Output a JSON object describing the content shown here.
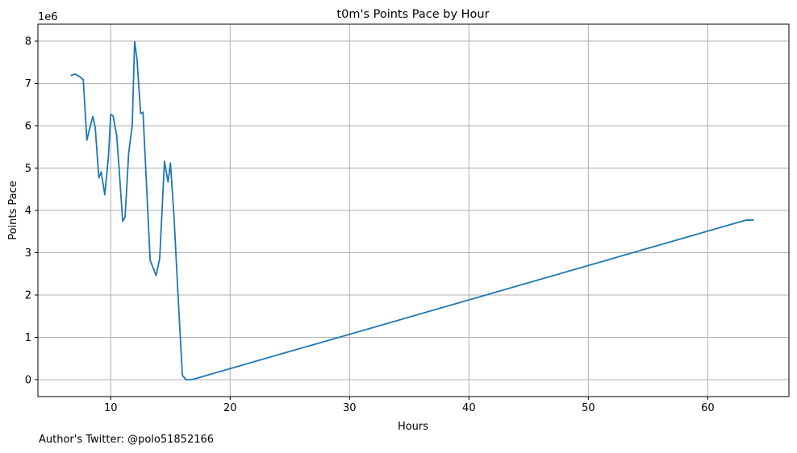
{
  "chart_data": {
    "type": "line",
    "title": "t0m's Points Pace by Hour",
    "xlabel": "Hours",
    "ylabel": "Points Pace",
    "y_scale_label": "1e6",
    "xlim": [
      3.9,
      66.8
    ],
    "ylim": [
      -0.4,
      8.4
    ],
    "grid": true,
    "line_color": "#1f77b4",
    "x_ticks": [
      10,
      20,
      30,
      40,
      50,
      60
    ],
    "y_ticks": [
      0,
      1,
      2,
      3,
      4,
      5,
      6,
      7,
      8
    ],
    "series": [
      {
        "x": [
          6.7,
          7.0,
          7.4,
          7.7,
          8.0,
          8.3,
          8.5,
          8.7,
          9.0,
          9.2,
          9.5,
          9.8,
          10.0,
          10.2,
          10.5,
          10.7,
          11.0,
          11.2,
          11.5,
          11.8,
          12.0,
          12.2,
          12.5,
          12.7,
          13.0,
          13.3,
          13.8,
          14.1,
          14.5,
          14.8,
          15.0,
          15.3,
          15.6,
          16.0,
          16.3,
          16.8,
          63.2,
          63.8
        ],
        "y": [
          7.19,
          7.22,
          7.16,
          7.09,
          5.66,
          6.01,
          6.22,
          5.96,
          4.77,
          4.91,
          4.37,
          5.25,
          6.27,
          6.23,
          5.76,
          4.99,
          3.74,
          3.84,
          5.35,
          6.01,
          7.99,
          7.57,
          6.29,
          6.32,
          4.58,
          2.82,
          2.46,
          2.86,
          5.16,
          4.67,
          5.12,
          3.85,
          2.19,
          0.1,
          0.0,
          0.0,
          3.77,
          3.77
        ]
      }
    ]
  },
  "footer": {
    "text": "Author's Twitter: @polo51852166"
  }
}
